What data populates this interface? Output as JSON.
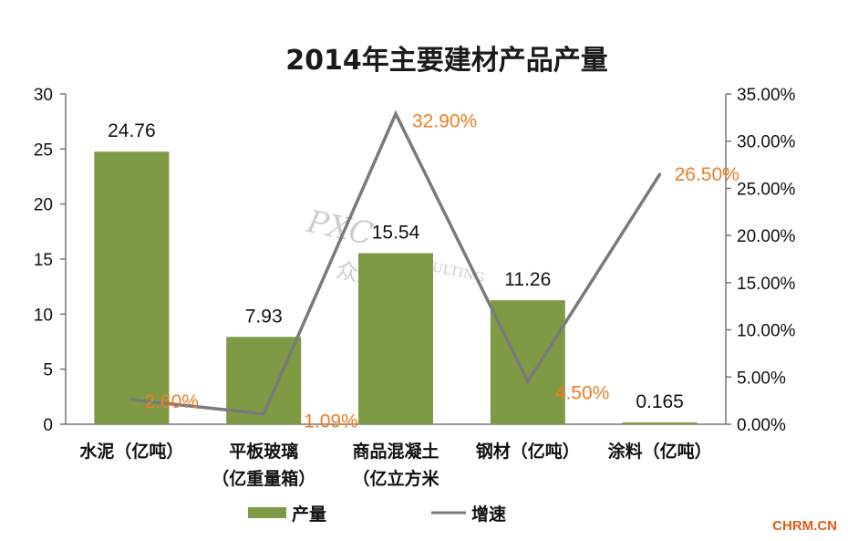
{
  "chart_data": {
    "type": "bar",
    "title": "2014年主要建材产品产量",
    "categories": [
      [
        "水泥（亿吨）"
      ],
      [
        "平板玻璃",
        "（亿重量箱）"
      ],
      [
        "商品混凝土",
        "（亿立方米"
      ],
      [
        "钢材（亿吨）"
      ],
      [
        "涂料（亿吨）"
      ]
    ],
    "series": [
      {
        "name": "产量",
        "type": "bar",
        "axis": "left",
        "color": "#7f9a45",
        "values": [
          24.76,
          7.93,
          15.54,
          11.26,
          0.165
        ],
        "labels": [
          "24.76",
          "7.93",
          "15.54",
          "11.26",
          "0.165"
        ]
      },
      {
        "name": "增速",
        "type": "line",
        "axis": "right",
        "color": "#7a7a7a",
        "values": [
          2.6,
          1.09,
          32.9,
          4.5,
          26.5
        ],
        "labels": [
          "2.60%",
          "1.09%",
          "32.90%",
          "4.50%",
          "26.50%"
        ],
        "label_color": "#ee7d25"
      }
    ],
    "ylim_left": [
      0,
      30
    ],
    "yticks_left": [
      "0",
      "5",
      "10",
      "15",
      "20",
      "25",
      "30"
    ],
    "ylim_right": [
      0,
      35
    ],
    "yticks_right": [
      "0.00%",
      "5.00%",
      "10.00%",
      "15.00%",
      "20.00%",
      "25.00%",
      "30.00%",
      "35.00%"
    ],
    "grid": false,
    "legend_position": "bottom"
  },
  "watermark": {
    "brand": "PXC",
    "consulting": "CONSULTING",
    "cn": "众达咨信"
  },
  "site_mark": "CHRM.CN"
}
